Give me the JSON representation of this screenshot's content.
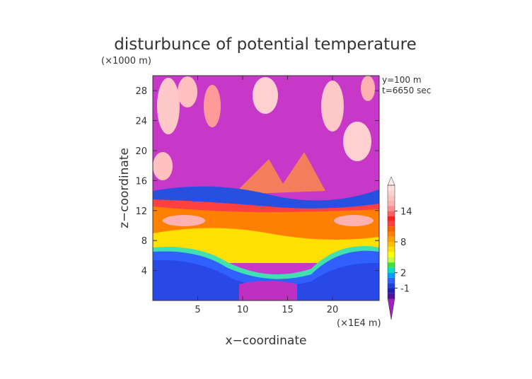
{
  "chart_data": {
    "type": "contour",
    "title": "disturbunce of potential temperature",
    "x_label": "x−coordinate",
    "y_label": "z−coordinate",
    "x_unit": "(×1E4 m)",
    "y_unit": "(×1000 m)",
    "annotations": [
      "y=100 m",
      "t=6650 sec"
    ],
    "xlim": [
      0,
      25.2
    ],
    "xticks": [
      5,
      10,
      15,
      20
    ],
    "ylim": [
      0,
      30
    ],
    "yticks": [
      4,
      8,
      12,
      16,
      20,
      24,
      28
    ],
    "colorbar": {
      "levels": [
        -3,
        -2,
        -1,
        0,
        1,
        2,
        3,
        4,
        5,
        6,
        7,
        8,
        9,
        10,
        11,
        12,
        13,
        14,
        15,
        16,
        17,
        18,
        19
      ],
      "colors": [
        "#a020c0",
        "#5010a0",
        "#2020b0",
        "#2040e0",
        "#3060ff",
        "#00a0ff",
        "#00e0c0",
        "#40e040",
        "#c0ff40",
        "#ffff00",
        "#ffe000",
        "#ffc000",
        "#ffa000",
        "#ff8000",
        "#ff6000",
        "#ff4040",
        "#ff2020",
        "#ff6060",
        "#ff9090",
        "#ffb0b0",
        "#ffc0c0",
        "#ffd0d0",
        "#ffe0e0",
        "#ffe8e8"
      ],
      "ticks": [
        -1,
        2,
        8,
        14
      ]
    }
  }
}
